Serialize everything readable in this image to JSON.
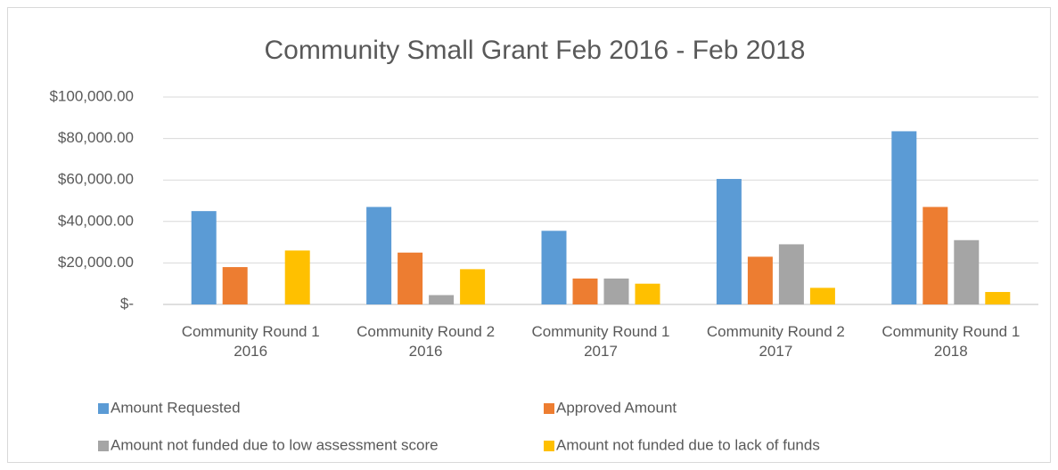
{
  "chart_data": {
    "type": "bar",
    "title": "Community Small Grant Feb 2016 - Feb 2018",
    "categories": [
      "Community Round 1 2016",
      "Community Round 2 2016",
      "Community Round 1 2017",
      "Community Round 2 2017",
      "Community Round 1 2018"
    ],
    "series": [
      {
        "name": "Amount Requested",
        "color": "#5b9bd5",
        "values": [
          45000,
          47000,
          35500,
          60500,
          83500
        ]
      },
      {
        "name": "Approved Amount",
        "color": "#ed7d31",
        "values": [
          18000,
          25000,
          12500,
          23000,
          47000
        ]
      },
      {
        "name": "Amount not funded due to low assessment score",
        "color": "#a5a5a5",
        "values": [
          0,
          4500,
          12500,
          29000,
          31000
        ]
      },
      {
        "name": "Amount not funded due to lack of funds",
        "color": "#ffc000",
        "values": [
          26000,
          17000,
          10000,
          8000,
          6000
        ]
      }
    ],
    "ylim": [
      0,
      100000
    ],
    "yticks": [
      {
        "value": 0,
        "label": "$-"
      },
      {
        "value": 20000,
        "label": "$20,000.00"
      },
      {
        "value": 40000,
        "label": "$40,000.00"
      },
      {
        "value": 60000,
        "label": "$60,000.00"
      },
      {
        "value": 80000,
        "label": "$80,000.00"
      },
      {
        "value": 100000,
        "label": "$100,000.00"
      }
    ],
    "grid": true,
    "legend": "bottom"
  }
}
